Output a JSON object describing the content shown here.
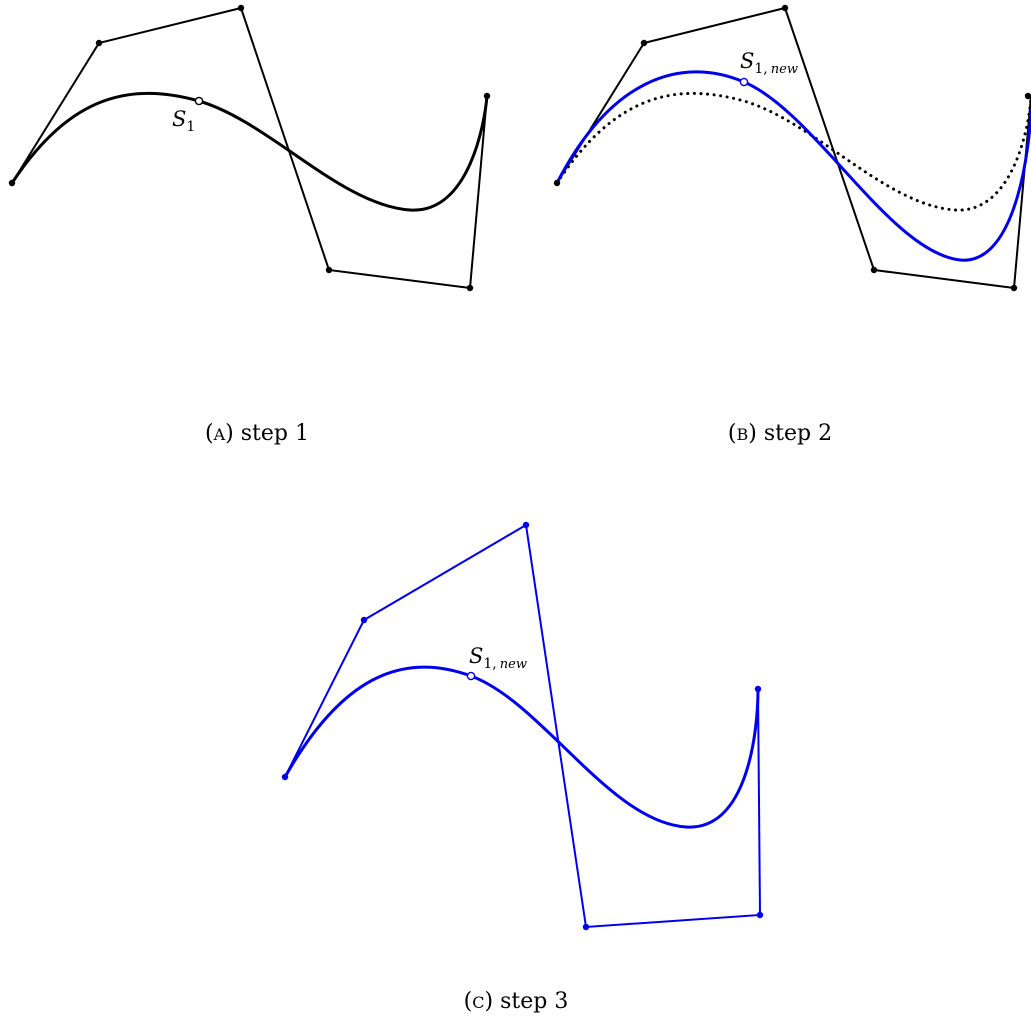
{
  "colors": {
    "original": "#000000",
    "modified": "#0000ee"
  },
  "panels": [
    {
      "id": "a",
      "caption_letter_open": "(",
      "caption_letter": "A",
      "caption_letter_close": ")",
      "caption_text": "step 1",
      "point_symbol": "S",
      "point_subscript": "1",
      "point_subscript_extra": ""
    },
    {
      "id": "b",
      "caption_letter_open": "(",
      "caption_letter": "B",
      "caption_letter_close": ")",
      "caption_text": "step 2",
      "point_symbol": "S",
      "point_subscript": "1,",
      "point_subscript_extra": "new"
    },
    {
      "id": "c",
      "caption_letter_open": "(",
      "caption_letter": "C",
      "caption_letter_close": ")",
      "caption_text": "step 3",
      "point_symbol": "S",
      "point_subscript": "1,",
      "point_subscript_extra": "new"
    }
  ]
}
